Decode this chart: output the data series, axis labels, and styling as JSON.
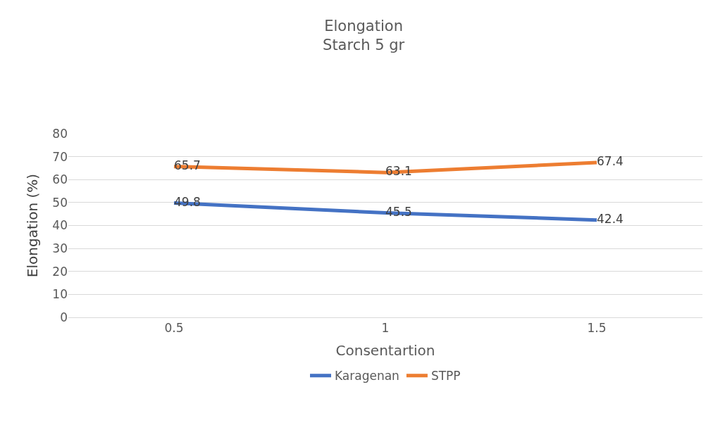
{
  "chart_data": {
    "type": "line",
    "title": "Elongation\nStarch 5 gr",
    "xlabel": "Consentartion",
    "ylabel": "Elongation (%)",
    "categories": [
      "0.5",
      "1",
      "1.5"
    ],
    "series": [
      {
        "name": "Karagenan",
        "color": "#4472c4",
        "values": [
          49.8,
          45.5,
          42.4
        ]
      },
      {
        "name": "STPP",
        "color": "#ed7d31",
        "values": [
          65.7,
          63.1,
          67.4
        ]
      }
    ],
    "ylim": [
      0,
      80
    ],
    "yticks": [
      0,
      10,
      20,
      30,
      40,
      50,
      60,
      70,
      80
    ],
    "grid": "y",
    "legend": "bottom",
    "data_labels": true,
    "marker": "none",
    "line_style": "solid"
  }
}
